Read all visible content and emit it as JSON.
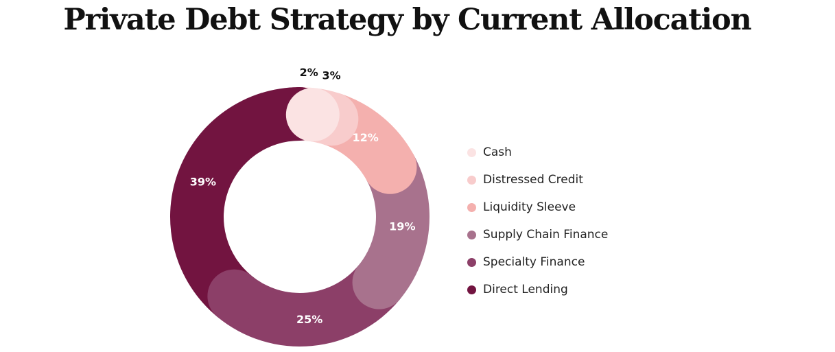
{
  "title": "Private Debt Strategy by Current Allocation",
  "chart_data": {
    "type": "pie",
    "variant": "donut",
    "title": "Private Debt Strategy by Current Allocation",
    "categories": [
      "Cash",
      "Distressed Credit",
      "Liquidity Sleeve",
      "Supply Chain Finance",
      "Specialty Finance",
      "Direct Lending"
    ],
    "values": [
      2,
      3,
      12,
      19,
      25,
      39
    ],
    "labels": [
      "2%",
      "3%",
      "12%",
      "19%",
      "25%",
      "39%"
    ],
    "colors": [
      "#fbe3e3",
      "#f8cccc",
      "#f4b0ae",
      "#a8728d",
      "#8c3f68",
      "#721440"
    ],
    "legend_position": "right"
  }
}
